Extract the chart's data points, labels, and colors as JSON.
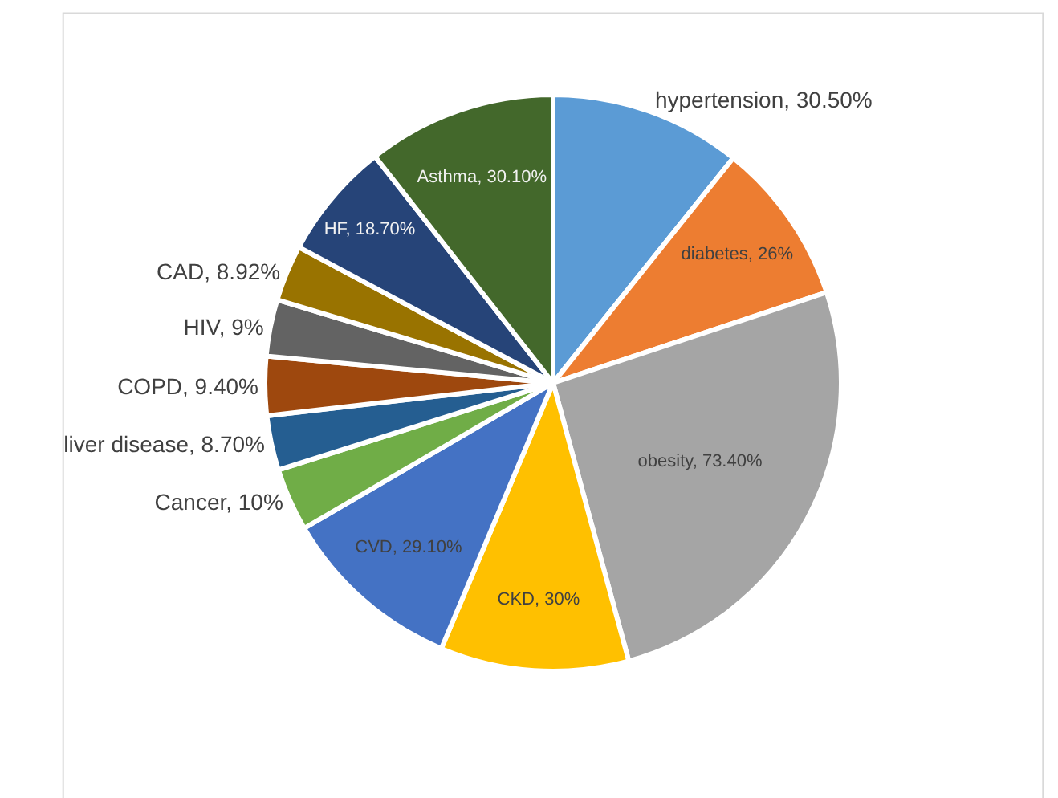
{
  "chart_data": {
    "type": "pie",
    "categories": [
      "hypertension",
      "diabetes",
      "obesity",
      "CKD",
      "CVD",
      "Cancer",
      "liver disease",
      "COPD",
      "HIV",
      "CAD",
      "HF",
      "Asthma"
    ],
    "values": [
      30.5,
      26,
      73.4,
      30,
      29.1,
      10,
      8.7,
      9.4,
      9,
      8.92,
      18.7,
      30.1
    ],
    "value_labels": [
      "30.50%",
      "26%",
      "73.40%",
      "30%",
      "29.10%",
      "10%",
      "8.70%",
      "9.40%",
      "9%",
      "8.92%",
      "18.70%",
      "30.10%"
    ],
    "colors": [
      "#5b9bd5",
      "#ed7d31",
      "#a5a5a5",
      "#ffc000",
      "#4472c4",
      "#70ad47",
      "#255e91",
      "#9e480e",
      "#636363",
      "#997300",
      "#264478",
      "#43682b"
    ],
    "legend": false
  }
}
